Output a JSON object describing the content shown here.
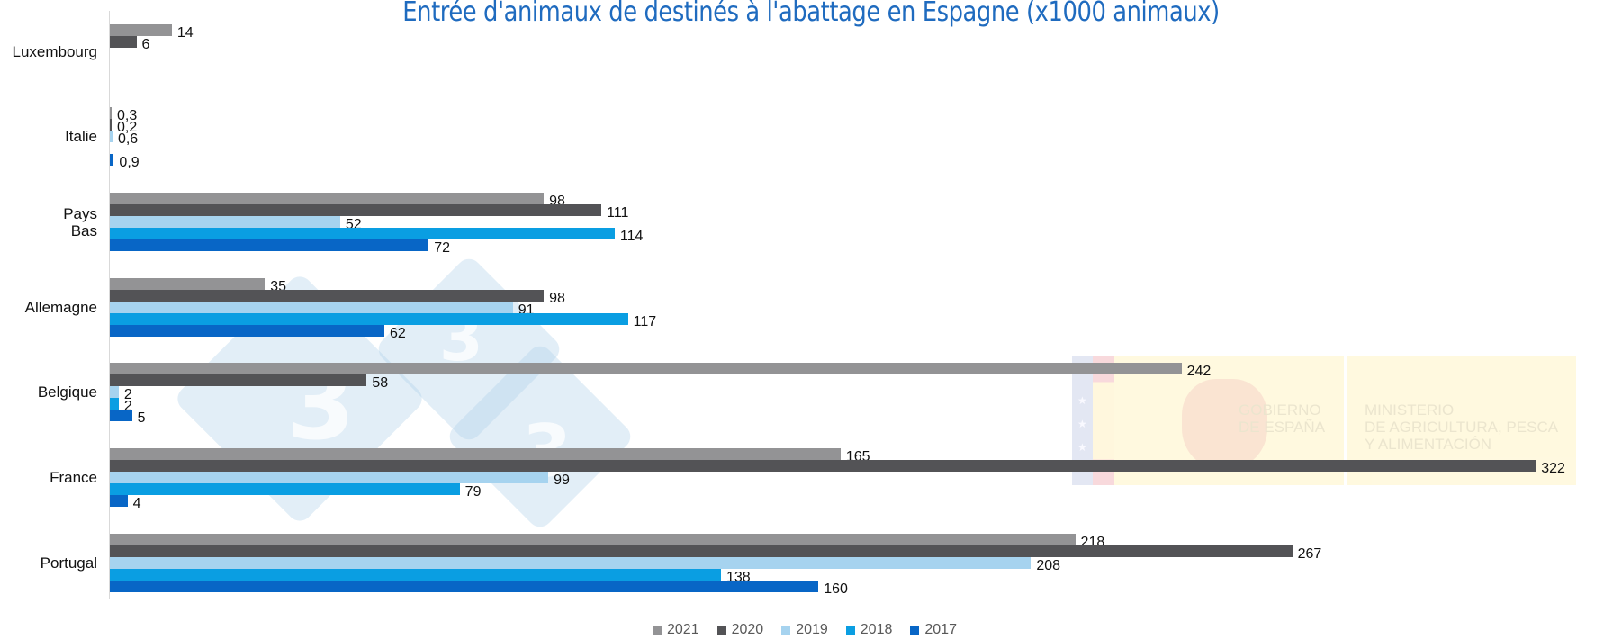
{
  "chart_data": {
    "type": "bar",
    "orientation": "horizontal",
    "title": "Entrée d'animaux de destinés à l'abattage en Espagne  (x1000 animaux)",
    "xlabel": "",
    "ylabel": "",
    "unit": "x1000 animaux",
    "categories": [
      "Luxembourg",
      "Italie",
      "Pays Bas",
      "Allemagne",
      "Belgique",
      "France",
      "Portugal"
    ],
    "series": [
      {
        "name": "2021",
        "color": "#939395",
        "values": [
          14,
          0.3,
          98,
          35,
          242,
          165,
          218
        ],
        "labels": [
          "14",
          "0,3",
          "98",
          "35",
          "242",
          "165",
          "218"
        ]
      },
      {
        "name": "2020",
        "color": "#535356",
        "values": [
          6,
          0.2,
          111,
          98,
          58,
          322,
          267
        ],
        "labels": [
          "6",
          "0,2",
          "111",
          "98",
          "58",
          "322",
          "267"
        ]
      },
      {
        "name": "2019",
        "color": "#a6d3ef",
        "values": [
          null,
          0.6,
          52,
          91,
          2,
          99,
          208
        ],
        "labels": [
          "",
          "0,6",
          "52",
          "91",
          "2",
          "99",
          "208"
        ]
      },
      {
        "name": "2018",
        "color": "#0a9ee2",
        "values": [
          null,
          null,
          114,
          117,
          2,
          79,
          138
        ],
        "labels": [
          "",
          "",
          "114",
          "117",
          "2",
          "79",
          "138"
        ]
      },
      {
        "name": "2017",
        "color": "#0866c6",
        "values": [
          null,
          0.9,
          72,
          62,
          5,
          4,
          160
        ],
        "labels": [
          "",
          "0,9",
          "72",
          "62",
          "5",
          "4",
          "160"
        ]
      }
    ],
    "legend": [
      "2021",
      "2020",
      "2019",
      "2018",
      "2017"
    ],
    "legend_position": "bottom",
    "xlim": [
      0,
      330
    ],
    "grid": false,
    "data_labels": true
  },
  "category_labels": [
    "Luxembourg",
    "Italie",
    "Pays\nBas",
    "Allemagne",
    "Belgique",
    "France",
    "Portugal"
  ],
  "watermark": {
    "digits": [
      "3",
      "3",
      "3"
    ]
  },
  "logo": {
    "left_text": "GOBIERNO\nDE ESPAÑA",
    "right_text": "MINISTERIO\nDE AGRICULTURA, PESCA\nY ALIMENTACIÓN"
  }
}
